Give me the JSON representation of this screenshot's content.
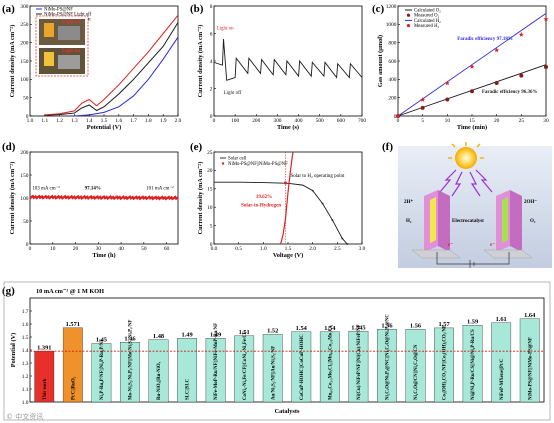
{
  "colors": {
    "black": "#1a1a1a",
    "red": "#e02020",
    "blue": "#2a2ae0",
    "dark_red": "#8b1a1a",
    "g_bar_red": "#e8302b",
    "g_bar_orange": "#f0922c",
    "g_bar_teal": "#a8e8d8",
    "g_dashed": "#d01818"
  },
  "chart_data": [
    {
      "id": "a",
      "panel_label": "(a)",
      "type": "line",
      "xlabel": "Potential (V)",
      "ylabel": "Current density (mA cm⁻²)",
      "xlim": [
        1.0,
        2.0
      ],
      "ylim": [
        0,
        300
      ],
      "xticks": [
        1.0,
        1.1,
        1.2,
        1.3,
        1.4,
        1.5,
        1.6,
        1.7,
        1.8,
        1.9,
        2.0
      ],
      "yticks": [
        0,
        50,
        100,
        150,
        200,
        250,
        300
      ],
      "legend": [
        "NiMo-PS@NF",
        "NiMo-PS@NF Light off",
        "NiMo-PS@NF Light on"
      ],
      "inset_labels": [
        "Light off",
        "Light on"
      ],
      "series": [
        {
          "name": "NiMo-PS@NF",
          "color": "blue",
          "x": [
            1.3,
            1.4,
            1.5,
            1.6,
            1.7,
            1.8,
            1.9,
            2.0
          ],
          "y": [
            0,
            3,
            10,
            25,
            55,
            100,
            155,
            215
          ]
        },
        {
          "name": "NiMo-PS@NF Light off",
          "color": "black",
          "x": [
            1.1,
            1.2,
            1.3,
            1.35,
            1.4,
            1.45,
            1.5,
            1.6,
            1.7,
            1.8,
            1.9,
            2.0
          ],
          "y": [
            2,
            4,
            8,
            22,
            30,
            15,
            25,
            60,
            100,
            145,
            190,
            255
          ]
        },
        {
          "name": "NiMo-PS@NF Light on",
          "color": "red",
          "x": [
            1.1,
            1.2,
            1.3,
            1.35,
            1.4,
            1.45,
            1.5,
            1.6,
            1.7,
            1.8,
            1.9,
            2.0
          ],
          "y": [
            3,
            6,
            14,
            35,
            45,
            28,
            45,
            85,
            130,
            175,
            225,
            275
          ]
        }
      ]
    },
    {
      "id": "b",
      "panel_label": "(b)",
      "type": "line",
      "xlabel": "Time (s)",
      "ylabel": "Current density (mA cm⁻²)",
      "xlim": [
        0,
        700
      ],
      "ylim": [
        0,
        8
      ],
      "xticks": [
        0,
        100,
        200,
        300,
        400,
        500,
        600,
        700
      ],
      "yticks": [
        0,
        2,
        4,
        6,
        8
      ],
      "annotations": [
        "Light on",
        "Light off"
      ],
      "series": [
        {
          "name": "chopped light",
          "color": "black",
          "x": [
            0,
            40,
            45,
            60,
            100,
            105,
            160,
            165,
            220,
            225,
            280,
            285,
            340,
            345,
            400,
            405,
            460,
            465,
            520,
            525,
            580,
            585,
            640,
            645,
            700
          ],
          "y": [
            3.9,
            3.7,
            5.6,
            2.6,
            2.8,
            4.2,
            3.1,
            4.2,
            3.1,
            4.1,
            3.0,
            4.1,
            3.0,
            4.0,
            2.9,
            4.0,
            2.9,
            3.9,
            2.9,
            3.9,
            2.8,
            3.8,
            2.8,
            3.8,
            2.8
          ]
        }
      ]
    },
    {
      "id": "c",
      "panel_label": "(c)",
      "type": "scatter",
      "xlabel": "Time (min)",
      "ylabel": "Gas amount (μmol)",
      "xlim": [
        0,
        30
      ],
      "ylim": [
        0,
        1200
      ],
      "xticks": [
        0,
        5,
        10,
        15,
        20,
        25,
        30
      ],
      "yticks": [
        0,
        200,
        400,
        600,
        800,
        1000,
        1200
      ],
      "legend": [
        "Calculated O₂",
        "Measured O₂",
        "Calculated H₂",
        "Measured H₂"
      ],
      "annotations": [
        "Faradic efficiency 97.18%",
        "Faradic efficiency 96.36%"
      ],
      "series": [
        {
          "name": "Calculated O₂",
          "color": "black",
          "x": [
            0,
            30
          ],
          "y": [
            0,
            560
          ]
        },
        {
          "name": "Measured O₂",
          "color": "dark_red",
          "x": [
            0,
            5,
            10,
            15,
            20,
            25,
            30
          ],
          "y": [
            0,
            88,
            180,
            270,
            360,
            440,
            535
          ]
        },
        {
          "name": "Calculated H₂",
          "color": "blue",
          "x": [
            0,
            30
          ],
          "y": [
            0,
            1120
          ]
        },
        {
          "name": "Measured H₂",
          "color": "red",
          "x": [
            0,
            5,
            10,
            15,
            20,
            25,
            30
          ],
          "y": [
            0,
            180,
            360,
            540,
            720,
            890,
            1060
          ]
        }
      ]
    },
    {
      "id": "d",
      "panel_label": "(d)",
      "type": "line",
      "xlabel": "Time (h)",
      "ylabel": "Current density (mA cm⁻²)",
      "xlim": [
        0,
        65
      ],
      "ylim": [
        0,
        200
      ],
      "xticks": [
        0,
        10,
        20,
        30,
        40,
        50,
        60
      ],
      "yticks": [
        0,
        50,
        100,
        150,
        200
      ],
      "annotations": [
        "103 mA cm⁻²",
        "97.14%",
        "101 mA cm⁻²"
      ],
      "series": [
        {
          "name": "stability",
          "color": "red",
          "x": [
            0,
            65
          ],
          "y": [
            102,
            100
          ]
        }
      ]
    },
    {
      "id": "e",
      "panel_label": "(e)",
      "type": "line",
      "xlabel": "Voltage (V)",
      "ylabel": "Current density (mA cm⁻²)",
      "xlim": [
        0.0,
        3.0
      ],
      "ylim": [
        0,
        25
      ],
      "xticks": [
        0.0,
        0.5,
        1.0,
        1.5,
        2.0,
        2.5,
        3.0
      ],
      "yticks": [
        0,
        5,
        10,
        15,
        20,
        25
      ],
      "legend": [
        "Solar cell",
        "NiMo-PS@NF||NiMo-PS@NF"
      ],
      "annotations": [
        "Solar to H₂ operating point",
        "19.62%",
        "Solar-to-Hydrogen"
      ],
      "series": [
        {
          "name": "Solar cell",
          "color": "black",
          "x": [
            0.0,
            0.5,
            1.0,
            1.5,
            1.8,
            2.0,
            2.2,
            2.4,
            2.6,
            2.7
          ],
          "y": [
            16.8,
            16.8,
            16.7,
            16.5,
            16.0,
            14.5,
            11.0,
            6.5,
            1.5,
            0
          ]
        },
        {
          "name": "NiMo-PS@NF||NiMo-PS@NF",
          "color": "red",
          "x": [
            1.35,
            1.4,
            1.45,
            1.5,
            1.55,
            1.6
          ],
          "y": [
            0,
            2.5,
            7,
            14,
            20,
            25
          ]
        }
      ]
    },
    {
      "id": "g",
      "panel_label": "(g)",
      "type": "bar",
      "xlabel": "Catalysts",
      "ylabel": "Potential (V)",
      "ylim": [
        1.0,
        1.8
      ],
      "yticks": [
        1.0,
        1.1,
        1.2,
        1.3,
        1.4,
        1.5,
        1.6,
        1.7
      ],
      "title": "10 mA cm⁻² @ 1 M KOH",
      "categories": [
        "This work",
        "Pt/C||RuO₂",
        "Ni₂P-Ru₂P/NF||Ni₂P-Ru₂P/NF",
        "Mo-Ni₃S₂/NiₓPᵧ/NF||Mo-Ni₃S₂/NiₓPᵧ/NF",
        "Ru-NiOₓ||Ru-NiOₓ",
        "SLC||SLC",
        "NiFe-MoP-Ru/NF||NiFe-MoP-Ru/NF",
        "CoNi₂-Ni₃Fe/CF||CoNi₂-Ni₃Fe/CF",
        "Au/Ni₃S₂/NF||Au/Ni₃S₂/NF",
        "CoCuP-HOHC||CoCuP-HOHC",
        "Mn₀.₅Co₂.₅Mo₃Cl₂||Mn₀.₅Co₂.₅Mo₃Cl₂",
        "Ni(Cu)/NiFeP/NF||Ni(Cu)/NiFeP/NF",
        "Ni₂CₓO@NiₓPᵧ@NC||Ni₂CₓO@NiₓPᵧ@NC",
        "Ni₂CₓO@CN||Ni₂CₓO@CN",
        "Co₂(OH)₂CO₃/NF||Co₂(OH)₂CO₃/NF",
        "Ni@Ni₂P-Ru/CS||Ni@Ni₂P-Ru/CS",
        "NiFeP-MXene||Pt/C",
        "NiMo-PS@NF||NiMo-PS@NF"
      ],
      "values": [
        1.391,
        1.571,
        1.45,
        1.46,
        1.48,
        1.49,
        1.49,
        1.51,
        1.52,
        1.54,
        1.54,
        1.545,
        1.56,
        1.56,
        1.57,
        1.59,
        1.61,
        1.64
      ],
      "value_labels": [
        "1.391",
        "1.571",
        "1.45",
        "1.46",
        "1.48",
        "1.49",
        "1.49",
        "1.51",
        "1.52",
        "1.54",
        "1.54",
        "1.545",
        "1.56",
        "1.56",
        "1.57",
        "1.59",
        "1.61",
        "1.64"
      ],
      "reference_line": 1.391
    }
  ],
  "panel_f": {
    "panel_label": "(f)",
    "labels": {
      "left_ion": "2H⁺",
      "right_ion": "2OH⁻",
      "left_gas": "H₂",
      "right_gas": "O₂",
      "center": "Electrocatalyst",
      "electron_left": "e⁻",
      "electron_right": "e⁻"
    }
  },
  "watermark": "© 中文资讯"
}
